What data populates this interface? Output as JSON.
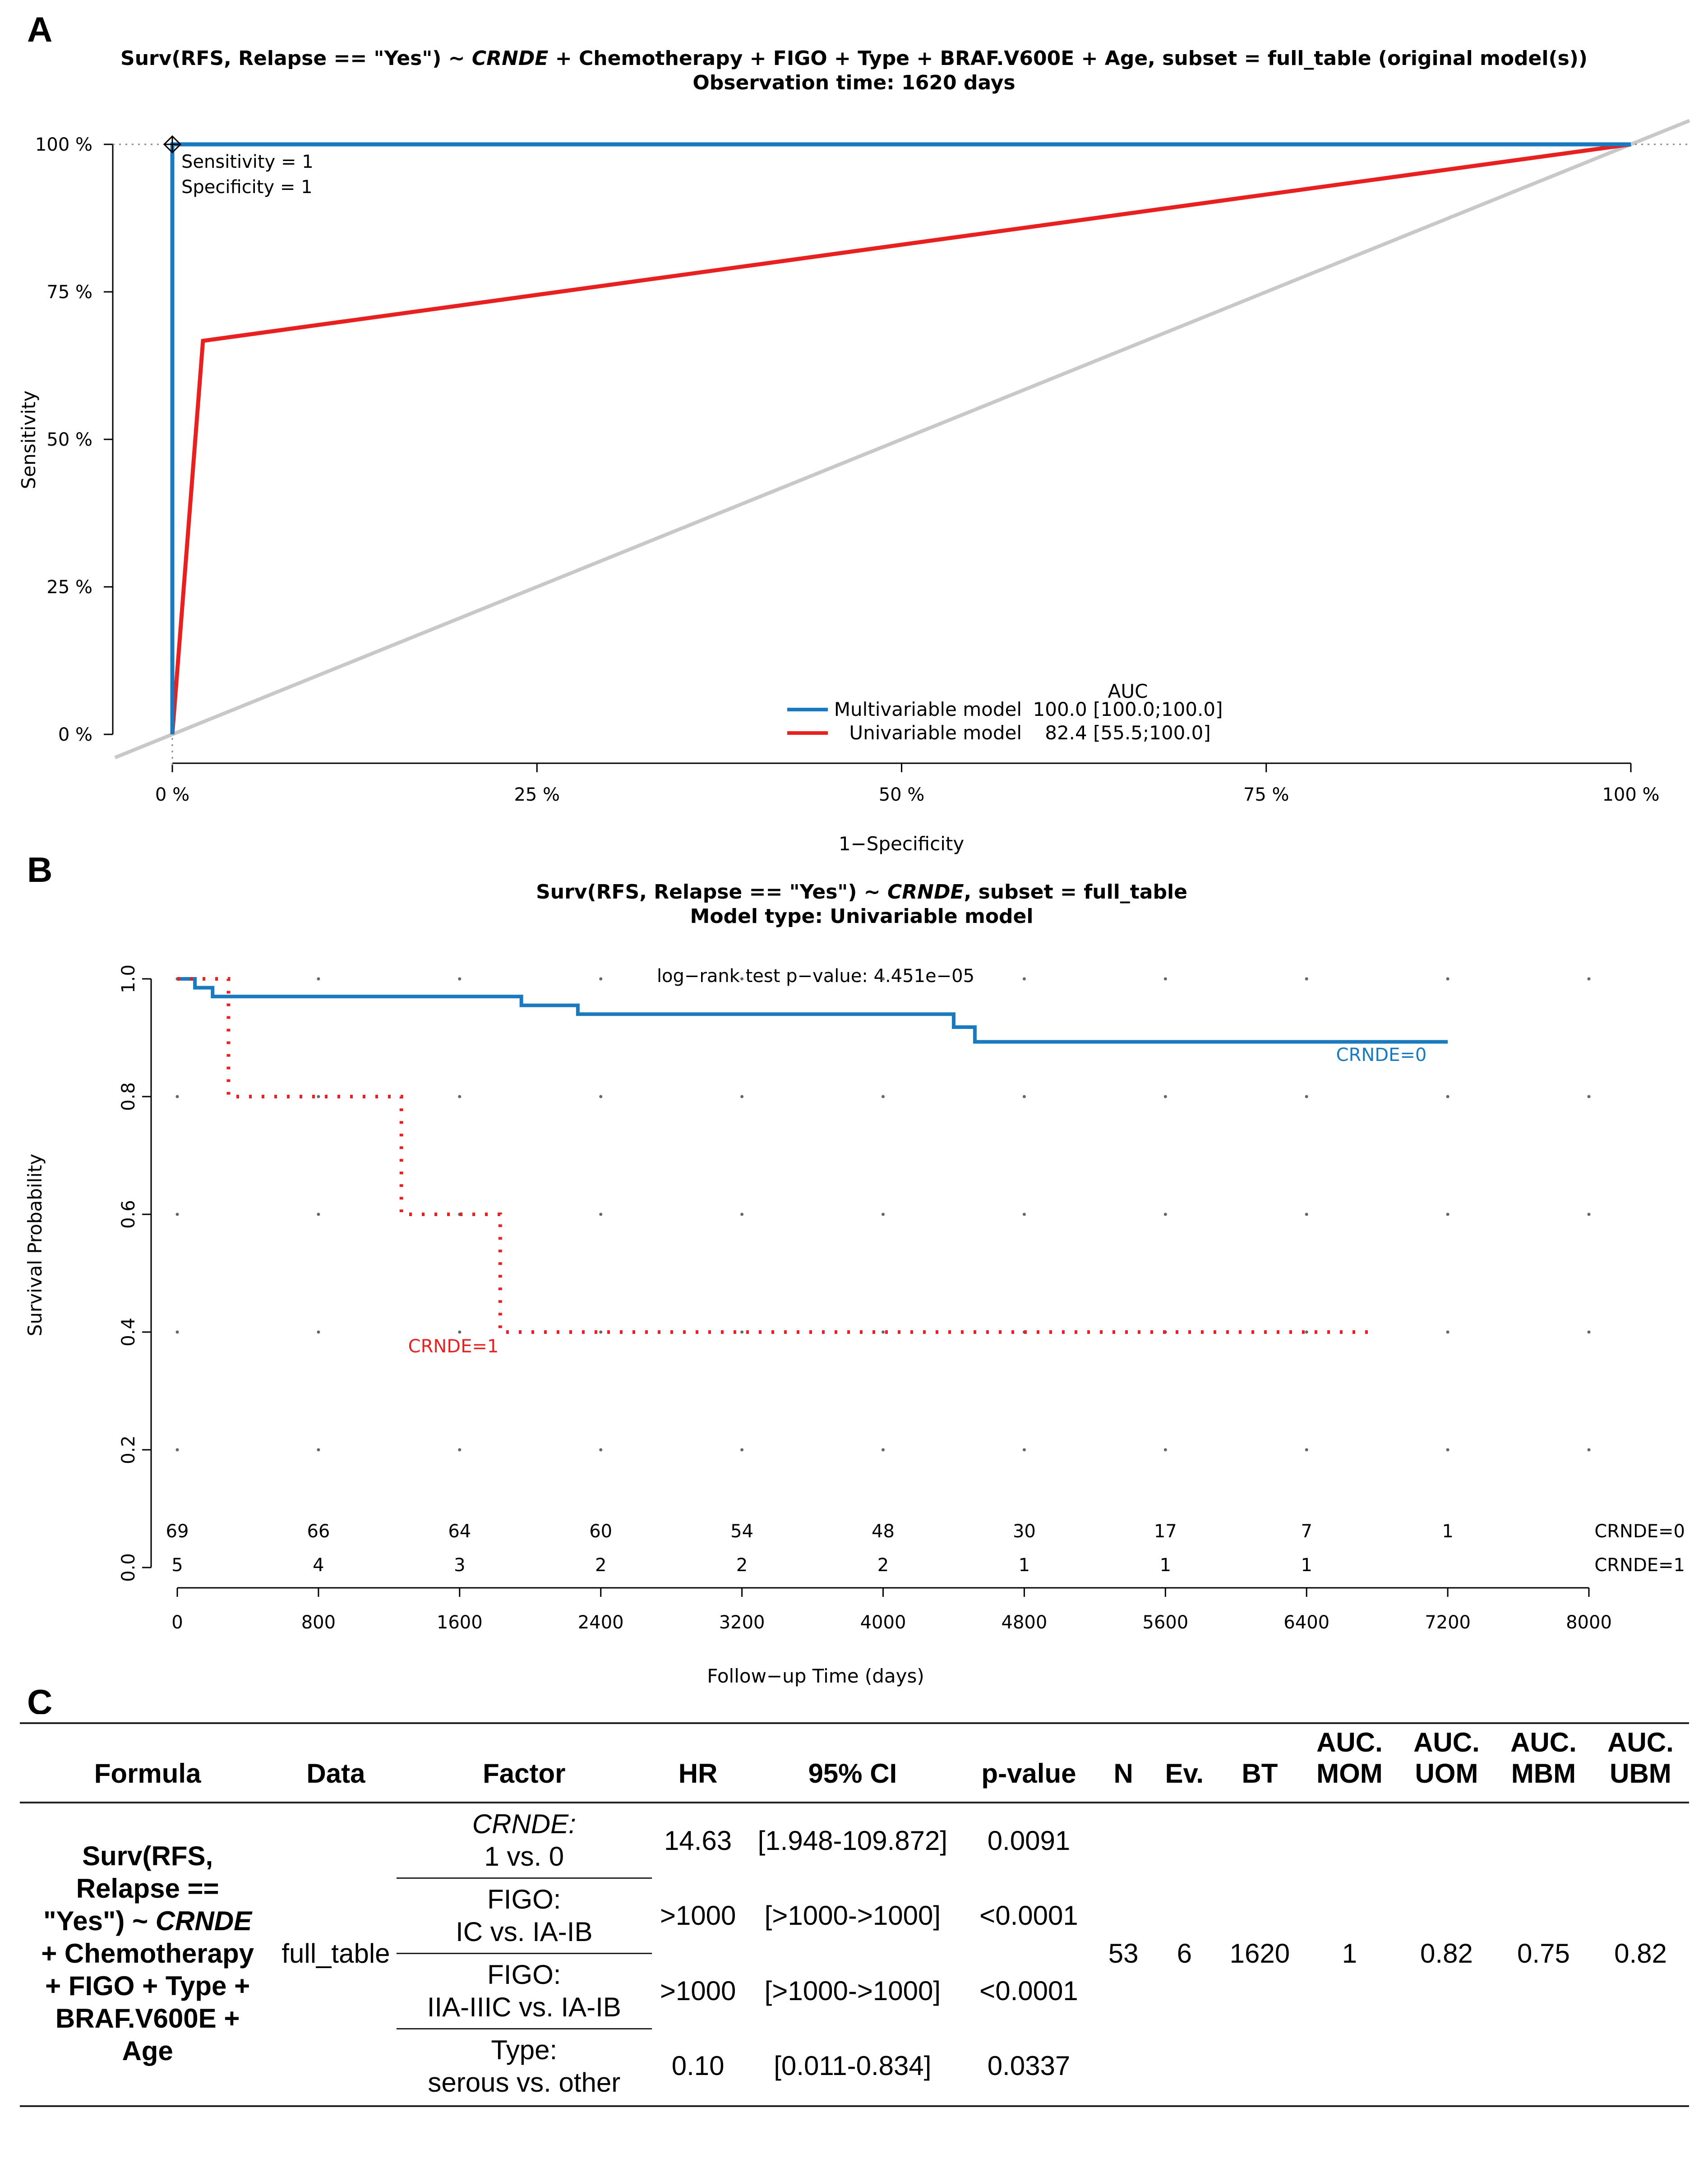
{
  "panels": {
    "a": {
      "letter": "A",
      "title_line1_pre": "Surv(RFS, Relapse == \"Yes\") ~ ",
      "title_line1_em": "CRNDE",
      "title_line1_post": " + Chemotherapy + FIGO + Type + BRAF.V600E + Age, subset = full_table (original model(s))",
      "title_line2": "Observation time: 1620 days",
      "annotation_lines": [
        "Sensitivity = 1",
        "Specificity = 1"
      ],
      "legend_header": "AUC",
      "legend_entries": [
        {
          "name": "Multivariable model",
          "auc": "100.0 [100.0;100.0]",
          "color": "#1a7abf"
        },
        {
          "name": "Univariable model",
          "auc": "82.4 [55.5;100.0]",
          "color": "#e8201f"
        }
      ]
    },
    "b": {
      "letter": "B",
      "title_line1_pre": "Surv(RFS, Relapse == \"Yes\") ~ ",
      "title_line1_em": "CRNDE",
      "title_line1_post": ", subset = full_table",
      "title_line2": "Model type: Univariable model",
      "pvalue_text": "log−rank test p−value: 4.451e−05",
      "curve_labels": [
        "CRNDE=0",
        "CRNDE=1"
      ]
    },
    "c": {
      "letter": "C"
    }
  },
  "chart_data": [
    {
      "type": "line",
      "xlabel": "1−Specificity",
      "ylabel": "Sensitivity",
      "xlim": [
        0,
        1
      ],
      "ylim": [
        0,
        1
      ],
      "x_ticks": [
        0,
        0.25,
        0.5,
        0.75,
        1
      ],
      "x_tick_labels": [
        "0 %",
        "25 %",
        "50 %",
        "75 %",
        "100 %"
      ],
      "y_ticks": [
        0,
        0.25,
        0.5,
        0.75,
        1
      ],
      "y_tick_labels": [
        "0 %",
        "25 %",
        "50 %",
        "75 %",
        "100 %"
      ],
      "legend_position": "bottom-center",
      "series": [
        {
          "name": "Multivariable model",
          "color": "#1a7abf",
          "x": [
            0,
            0,
            1
          ],
          "y": [
            0,
            1,
            1
          ]
        },
        {
          "name": "Univariable model",
          "color": "#e8201f",
          "x": [
            0,
            0.021,
            1
          ],
          "y": [
            0,
            0.667,
            1
          ]
        }
      ],
      "reference_line": {
        "x": [
          0,
          1
        ],
        "y": [
          0,
          1
        ],
        "color": "#c8c8c8"
      },
      "marker": {
        "x": 0,
        "y": 1
      }
    },
    {
      "type": "line",
      "xlabel": "Follow−up Time (days)",
      "ylabel": "Survival Probability",
      "xlim": [
        0,
        8000
      ],
      "ylim": [
        0,
        1
      ],
      "x_ticks": [
        0,
        800,
        1600,
        2400,
        3200,
        4000,
        4800,
        5600,
        6400,
        7200,
        8000
      ],
      "x_tick_labels": [
        "0",
        "800",
        "1600",
        "2400",
        "3200",
        "4000",
        "4800",
        "5600",
        "6400",
        "7200",
        "8000"
      ],
      "y_ticks": [
        0,
        0.2,
        0.4,
        0.6,
        0.8,
        1
      ],
      "y_tick_labels": [
        "0.0",
        "0.2",
        "0.4",
        "0.6",
        "0.8",
        "1.0"
      ],
      "grid": true,
      "series": [
        {
          "name": "CRNDE=0",
          "color": "#1a7abf",
          "style": "solid",
          "x": [
            0,
            100,
            100,
            200,
            200,
            1950,
            1950,
            2270,
            2270,
            4400,
            4400,
            4520,
            4520,
            7200
          ],
          "y": [
            1.0,
            1.0,
            0.985,
            0.985,
            0.97,
            0.97,
            0.955,
            0.955,
            0.94,
            0.94,
            0.918,
            0.918,
            0.893,
            0.893
          ]
        },
        {
          "name": "CRNDE=1",
          "color": "#e8201f",
          "style": "dotted",
          "x": [
            0,
            290,
            290,
            1270,
            1270,
            1830,
            1830,
            6800
          ],
          "y": [
            1.0,
            1.0,
            0.8,
            0.8,
            0.6,
            0.6,
            0.4,
            0.4
          ]
        }
      ],
      "risk_table": {
        "times": [
          0,
          800,
          1600,
          2400,
          3200,
          4000,
          4800,
          5600,
          6400,
          7200
        ],
        "rows": [
          {
            "label": "CRNDE=0",
            "values": [
              "69",
              "66",
              "64",
              "60",
              "54",
              "48",
              "30",
              "17",
              "7",
              "1"
            ]
          },
          {
            "label": "CRNDE=1",
            "values": [
              "5",
              "4",
              "3",
              "2",
              "2",
              "2",
              "1",
              "1",
              "1",
              ""
            ]
          }
        ]
      }
    },
    {
      "type": "table",
      "headers": [
        "Formula",
        "Data",
        "Factor",
        "HR",
        "95% CI",
        "p-value",
        "N",
        "Ev.",
        "BT",
        "AUC. MOM",
        "AUC. UOM",
        "AUC. MBM",
        "AUC. UBM"
      ],
      "formula_lines": [
        "Surv(RFS,",
        "Relapse ==",
        "\"Yes\") ~ ",
        "CRNDE",
        "+ Chemotherapy",
        "+ FIGO + Type +",
        "BRAF.V600E +",
        "Age"
      ],
      "data": "full_table",
      "factors": [
        {
          "line1": "CRNDE:",
          "line1_italic": true,
          "line2": "1 vs. 0",
          "hr": "14.63",
          "ci": "[1.948-109.872]",
          "p": "0.0091"
        },
        {
          "line1": "FIGO:",
          "line1_italic": false,
          "line2": "IC vs. IA-IB",
          "hr": ">1000",
          "ci": "[>1000->1000]",
          "p": "<0.0001"
        },
        {
          "line1": "FIGO:",
          "line1_italic": false,
          "line2": "IIA-IIIC vs. IA-IB",
          "hr": ">1000",
          "ci": "[>1000->1000]",
          "p": "<0.0001"
        },
        {
          "line1": "Type:",
          "line1_italic": false,
          "line2": "serous vs. other",
          "hr": "0.10",
          "ci": "[0.011-0.834]",
          "p": "0.0337"
        }
      ],
      "n": "53",
      "events": "6",
      "bt": "1620",
      "auc_mom": "1",
      "auc_uom": "0.82",
      "auc_mbm": "0.75",
      "auc_ubm": "0.82"
    }
  ]
}
